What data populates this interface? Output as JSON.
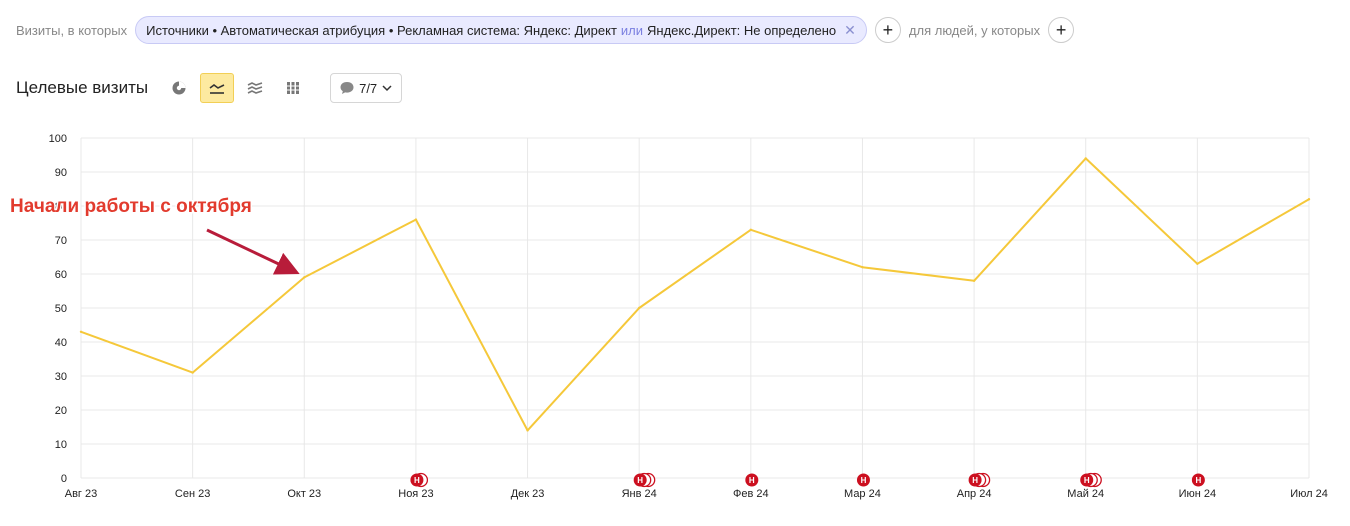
{
  "filter": {
    "prefix": "Визиты, в которых",
    "chip_part1": "Источники • Автоматическая атрибуция • Рекламная система: Яндекс: Директ",
    "chip_or": "или",
    "chip_part2": "Яндекс.Директ: Не определено",
    "close_glyph": "✕",
    "add_glyph": "+",
    "people": "для людей, у которых"
  },
  "header": {
    "title": "Целевые визиты",
    "notes_count": "7/7",
    "icons": [
      "pie-chart-icon",
      "line-chart-icon",
      "area-chart-icon",
      "bar-chart-icon",
      "comment-icon",
      "chevron-down-icon"
    ]
  },
  "colors": {
    "line": "#f5c83a",
    "grid": "#e8e8e8",
    "marker": "#cc1020",
    "annotation": "#e23b2e",
    "arrow": "#b81c3a"
  },
  "chart_data": {
    "type": "line",
    "categories": [
      "Авг 23",
      "Сен 23",
      "Окт 23",
      "Ноя 23",
      "Дек 23",
      "Янв 24",
      "Фев 24",
      "Мар 24",
      "Апр 24",
      "Май 24",
      "Июн 24",
      "Июл 24"
    ],
    "values": [
      43,
      31,
      59,
      76,
      14,
      50,
      73,
      62,
      58,
      94,
      63,
      82
    ],
    "ylim": [
      0,
      100
    ],
    "yticks": [
      0,
      10,
      20,
      30,
      40,
      50,
      60,
      70,
      80,
      90,
      100
    ],
    "grid": true,
    "annotation": {
      "text": "Начали работы с октября",
      "points_to": "Окт 23"
    },
    "note_markers": [
      {
        "category": "Ноя 23",
        "count": 2,
        "label": "Н"
      },
      {
        "category": "Янв 24",
        "count": 3,
        "label": "Н"
      },
      {
        "category": "Фев 24",
        "count": 1,
        "label": "Н"
      },
      {
        "category": "Мар 24",
        "count": 1,
        "label": "Н"
      },
      {
        "category": "Апр 24",
        "count": 3,
        "label": "Н"
      },
      {
        "category": "Май 24",
        "count": 3,
        "label": "Н"
      },
      {
        "category": "Июн 24",
        "count": 1,
        "label": "Н"
      }
    ]
  }
}
